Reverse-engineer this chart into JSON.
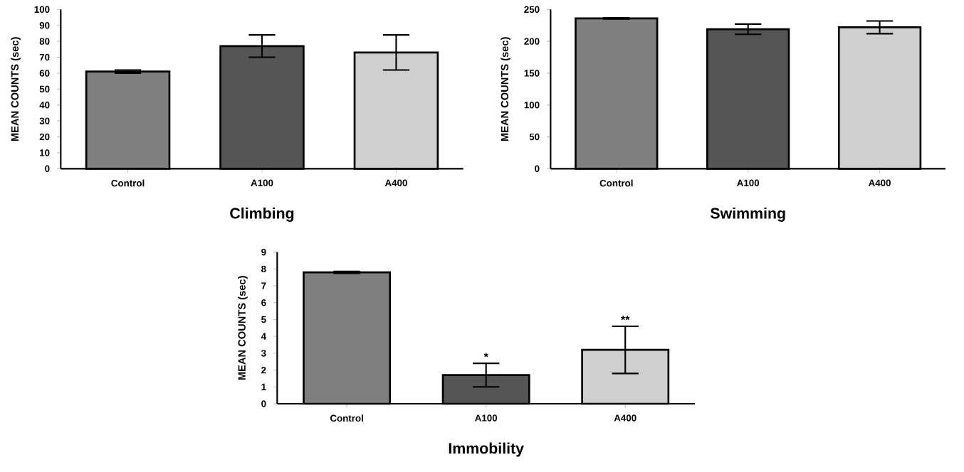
{
  "chart_data": [
    {
      "type": "bar",
      "xlabel": "Climbing",
      "ylabel": "MEAN COUNTS (sec)",
      "categories": [
        "Control",
        "A100",
        "A400"
      ],
      "values": [
        61,
        77,
        73
      ],
      "colors": [
        "#7f7f7f",
        "#555555",
        "#cfcfcf"
      ],
      "errors": [
        1,
        7,
        11
      ],
      "ylim": [
        0,
        100
      ],
      "yticks": [
        0,
        10,
        20,
        30,
        40,
        50,
        60,
        70,
        80,
        90,
        100
      ]
    },
    {
      "type": "bar",
      "xlabel": "Swimming",
      "ylabel": "MEAN COUNTS (sec)",
      "categories": [
        "Control",
        "A100",
        "A400"
      ],
      "values": [
        236,
        219,
        222
      ],
      "colors": [
        "#7f7f7f",
        "#555555",
        "#cfcfcf"
      ],
      "errors": [
        1,
        8,
        10
      ],
      "ylim": [
        0,
        250
      ],
      "yticks": [
        0,
        50,
        100,
        150,
        200,
        250
      ]
    },
    {
      "type": "bar",
      "xlabel": "Immobility",
      "ylabel": "MEAN COUNTS (sec)",
      "categories": [
        "Control",
        "A100",
        "A400"
      ],
      "values": [
        7.8,
        1.7,
        3.2
      ],
      "colors": [
        "#7f7f7f",
        "#555555",
        "#cfcfcf"
      ],
      "errors": [
        0.05,
        0.7,
        1.4
      ],
      "ylim": [
        0,
        9
      ],
      "yticks": [
        0,
        1,
        2,
        3,
        4,
        5,
        6,
        7,
        8,
        9
      ],
      "annotations": [
        {
          "text": "*",
          "x": "A100",
          "y": 2.4
        },
        {
          "text": "**",
          "x": "A400",
          "y": 4.6
        }
      ]
    }
  ]
}
